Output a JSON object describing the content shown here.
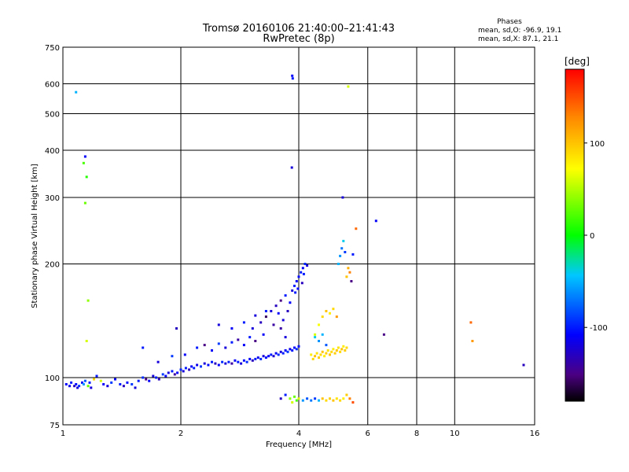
{
  "chart_data": {
    "type": "scatter",
    "title_line1": "Tromsø 20160106 21:40:00–21:41:43",
    "title_line2": "RwPretec (8p)",
    "stats": {
      "heading": "Phases",
      "line_o": "mean, sd,O: -96.9, 19.1",
      "line_x": "mean, sd,X:  87.1, 21.1"
    },
    "xlabel": "Frequency [MHz]",
    "ylabel": "Stationary phase Virtual Height [km]",
    "x_scale": "log",
    "y_scale": "log",
    "xlim": [
      1,
      16
    ],
    "ylim": [
      75,
      750
    ],
    "x_ticks": [
      1,
      2,
      4,
      6,
      8,
      10,
      16
    ],
    "x_tick_labels": [
      "1",
      "2",
      "4",
      "6",
      "8",
      "10",
      "16"
    ],
    "y_ticks": [
      75,
      100,
      200,
      300,
      400,
      500,
      600,
      750
    ],
    "y_tick_labels": [
      "75",
      "100",
      "200",
      "300",
      "400",
      "500",
      "600",
      "750"
    ],
    "grid": true,
    "colorbar": {
      "title": "[deg]",
      "range": [
        -180,
        180
      ],
      "ticks": [
        100,
        0,
        -100
      ],
      "tick_labels": [
        "100",
        "0",
        "-100"
      ]
    },
    "points": [
      [
        1.02,
        96,
        -110
      ],
      [
        1.04,
        95,
        -115
      ],
      [
        1.05,
        97,
        -100
      ],
      [
        1.07,
        95,
        -130
      ],
      [
        1.08,
        96,
        -105
      ],
      [
        1.09,
        94,
        -120
      ],
      [
        1.1,
        95,
        -95
      ],
      [
        1.12,
        97,
        -110
      ],
      [
        1.13,
        96,
        -60
      ],
      [
        1.14,
        98,
        -80
      ],
      [
        1.16,
        95,
        30
      ],
      [
        1.17,
        97,
        -100
      ],
      [
        1.18,
        94,
        -120
      ],
      [
        1.08,
        570,
        -50
      ],
      [
        1.14,
        385,
        -110
      ],
      [
        1.13,
        370,
        20
      ],
      [
        1.15,
        340,
        10
      ],
      [
        1.14,
        290,
        30
      ],
      [
        1.16,
        160,
        40
      ],
      [
        1.15,
        125,
        60
      ],
      [
        1.2,
        99,
        90
      ],
      [
        1.22,
        101,
        -100
      ],
      [
        1.25,
        98,
        60
      ],
      [
        1.27,
        96,
        -110
      ],
      [
        1.3,
        95,
        -120
      ],
      [
        1.33,
        97,
        -90
      ],
      [
        1.36,
        99,
        -110
      ],
      [
        1.4,
        96,
        -100
      ],
      [
        1.43,
        95,
        -130
      ],
      [
        1.46,
        97,
        -105
      ],
      [
        1.5,
        96,
        -90
      ],
      [
        1.53,
        94,
        -120
      ],
      [
        1.56,
        98,
        -100
      ],
      [
        1.6,
        100,
        -95
      ],
      [
        1.63,
        99,
        -150
      ],
      [
        1.66,
        98,
        -110
      ],
      [
        1.7,
        101,
        -120
      ],
      [
        1.73,
        100,
        -100
      ],
      [
        1.76,
        99,
        -130
      ],
      [
        1.8,
        102,
        -90
      ],
      [
        1.83,
        101,
        -110
      ],
      [
        1.86,
        103,
        -120
      ],
      [
        1.9,
        104,
        -100
      ],
      [
        1.93,
        102,
        -140
      ],
      [
        1.96,
        103,
        -110
      ],
      [
        2.0,
        105,
        -95
      ],
      [
        2.03,
        104,
        -120
      ],
      [
        2.06,
        106,
        -100
      ],
      [
        2.1,
        105,
        -130
      ],
      [
        2.13,
        107,
        -110
      ],
      [
        2.16,
        106,
        -100
      ],
      [
        2.2,
        108,
        -115
      ],
      [
        2.25,
        107,
        -90
      ],
      [
        2.3,
        109,
        -120
      ],
      [
        2.35,
        108,
        -105
      ],
      [
        2.4,
        110,
        -100
      ],
      [
        2.45,
        109,
        -130
      ],
      [
        2.5,
        108,
        -110
      ],
      [
        2.55,
        110,
        -95
      ],
      [
        2.6,
        109,
        -120
      ],
      [
        2.65,
        110,
        -100
      ],
      [
        2.7,
        109,
        -140
      ],
      [
        2.75,
        111,
        -110
      ],
      [
        2.8,
        110,
        -100
      ],
      [
        2.85,
        109,
        -120
      ],
      [
        2.9,
        111,
        -105
      ],
      [
        2.95,
        110,
        -95
      ],
      [
        3.0,
        112,
        -110
      ],
      [
        3.05,
        111,
        -130
      ],
      [
        3.1,
        112,
        -100
      ],
      [
        3.15,
        113,
        -115
      ],
      [
        3.2,
        112,
        -95
      ],
      [
        3.25,
        114,
        -120
      ],
      [
        3.3,
        113,
        -105
      ],
      [
        3.35,
        114,
        -110
      ],
      [
        3.4,
        115,
        -100
      ],
      [
        3.45,
        114,
        -125
      ],
      [
        3.5,
        116,
        -110
      ],
      [
        3.55,
        115,
        -95
      ],
      [
        3.6,
        117,
        -120
      ],
      [
        3.65,
        116,
        -100
      ],
      [
        3.7,
        118,
        -110
      ],
      [
        3.75,
        117,
        -90
      ],
      [
        3.8,
        119,
        -115
      ],
      [
        3.85,
        118,
        -100
      ],
      [
        3.9,
        120,
        -110
      ],
      [
        3.95,
        119,
        -95
      ],
      [
        4.0,
        121,
        -105
      ],
      [
        1.6,
        120,
        -100
      ],
      [
        1.75,
        110,
        -120
      ],
      [
        1.9,
        114,
        -90
      ],
      [
        1.95,
        135,
        -130
      ],
      [
        2.05,
        115,
        -110
      ],
      [
        2.2,
        120,
        -100
      ],
      [
        2.3,
        122,
        -150
      ],
      [
        2.4,
        118,
        -110
      ],
      [
        2.5,
        123,
        -90
      ],
      [
        2.6,
        120,
        -120
      ],
      [
        2.7,
        124,
        -100
      ],
      [
        2.8,
        126,
        -140
      ],
      [
        2.9,
        122,
        -110
      ],
      [
        3.0,
        128,
        -100
      ],
      [
        3.05,
        135,
        -120
      ],
      [
        3.1,
        125,
        -150
      ],
      [
        3.2,
        140,
        -130
      ],
      [
        3.25,
        130,
        -110
      ],
      [
        3.3,
        145,
        -160
      ],
      [
        3.4,
        150,
        -120
      ],
      [
        3.45,
        138,
        -140
      ],
      [
        3.5,
        155,
        -130
      ],
      [
        3.55,
        148,
        -110
      ],
      [
        3.6,
        160,
        -150
      ],
      [
        3.65,
        142,
        -120
      ],
      [
        3.7,
        165,
        -100
      ],
      [
        3.75,
        150,
        -130
      ],
      [
        3.8,
        158,
        -110
      ],
      [
        3.85,
        170,
        -120
      ],
      [
        3.9,
        175,
        -100
      ],
      [
        3.95,
        180,
        -110
      ],
      [
        4.0,
        185,
        -105
      ],
      [
        4.05,
        190,
        -100
      ],
      [
        4.1,
        195,
        -110
      ],
      [
        4.15,
        200,
        -95
      ],
      [
        4.2,
        198,
        -120
      ],
      [
        4.12,
        188,
        -100
      ],
      [
        4.08,
        178,
        -130
      ],
      [
        3.98,
        172,
        -110
      ],
      [
        3.92,
        168,
        -100
      ],
      [
        2.5,
        138,
        -120
      ],
      [
        2.7,
        135,
        -110
      ],
      [
        2.9,
        140,
        -100
      ],
      [
        3.1,
        146,
        -120
      ],
      [
        3.3,
        150,
        -100
      ],
      [
        3.6,
        135,
        -140
      ],
      [
        3.7,
        128,
        -120
      ],
      [
        3.85,
        630,
        -110
      ],
      [
        3.86,
        620,
        -100
      ],
      [
        3.84,
        360,
        -120
      ],
      [
        4.3,
        115,
        80
      ],
      [
        4.35,
        112,
        90
      ],
      [
        4.4,
        114,
        100
      ],
      [
        4.45,
        116,
        85
      ],
      [
        4.5,
        113,
        95
      ],
      [
        4.55,
        115,
        90
      ],
      [
        4.6,
        117,
        100
      ],
      [
        4.65,
        114,
        80
      ],
      [
        4.7,
        116,
        95
      ],
      [
        4.75,
        118,
        85
      ],
      [
        4.8,
        115,
        100
      ],
      [
        4.85,
        117,
        90
      ],
      [
        4.9,
        119,
        80
      ],
      [
        4.95,
        116,
        95
      ],
      [
        5.0,
        118,
        100
      ],
      [
        5.05,
        120,
        85
      ],
      [
        5.1,
        117,
        90
      ],
      [
        5.15,
        119,
        100
      ],
      [
        5.2,
        121,
        80
      ],
      [
        5.25,
        118,
        95
      ],
      [
        5.3,
        120,
        90
      ],
      [
        4.4,
        130,
        60
      ],
      [
        4.5,
        138,
        70
      ],
      [
        4.6,
        145,
        90
      ],
      [
        4.7,
        150,
        100
      ],
      [
        4.8,
        148,
        80
      ],
      [
        4.9,
        152,
        90
      ],
      [
        5.0,
        145,
        120
      ],
      [
        4.5,
        125,
        -60
      ],
      [
        4.6,
        130,
        -50
      ],
      [
        4.4,
        128,
        -40
      ],
      [
        4.7,
        122,
        -80
      ],
      [
        5.05,
        200,
        -50
      ],
      [
        5.1,
        210,
        -60
      ],
      [
        5.15,
        220,
        -70
      ],
      [
        5.2,
        230,
        -40
      ],
      [
        5.3,
        185,
        100
      ],
      [
        5.35,
        195,
        110
      ],
      [
        5.4,
        190,
        130
      ],
      [
        5.45,
        180,
        -150
      ],
      [
        5.25,
        215,
        -90
      ],
      [
        5.5,
        212,
        -100
      ],
      [
        5.18,
        300,
        -120
      ],
      [
        5.35,
        590,
        60
      ],
      [
        5.6,
        248,
        140
      ],
      [
        3.6,
        88,
        -130
      ],
      [
        3.7,
        90,
        -100
      ],
      [
        3.8,
        88,
        40
      ],
      [
        3.85,
        86,
        60
      ],
      [
        3.9,
        89,
        30
      ],
      [
        3.95,
        87,
        20
      ],
      [
        4.0,
        88,
        60
      ],
      [
        4.1,
        87,
        -60
      ],
      [
        4.2,
        88,
        -80
      ],
      [
        4.3,
        87,
        -70
      ],
      [
        4.4,
        88,
        -90
      ],
      [
        4.5,
        87,
        -50
      ],
      [
        4.6,
        88,
        100
      ],
      [
        4.7,
        87,
        90
      ],
      [
        4.8,
        88,
        95
      ],
      [
        4.9,
        87,
        100
      ],
      [
        5.0,
        88,
        85
      ],
      [
        5.1,
        87,
        90
      ],
      [
        5.2,
        88,
        80
      ],
      [
        5.3,
        90,
        95
      ],
      [
        5.4,
        88,
        130
      ],
      [
        5.5,
        86,
        150
      ],
      [
        6.3,
        260,
        -110
      ],
      [
        6.6,
        130,
        -150
      ],
      [
        11.0,
        140,
        140
      ],
      [
        11.1,
        125,
        120
      ],
      [
        15.0,
        108,
        -130
      ]
    ]
  }
}
